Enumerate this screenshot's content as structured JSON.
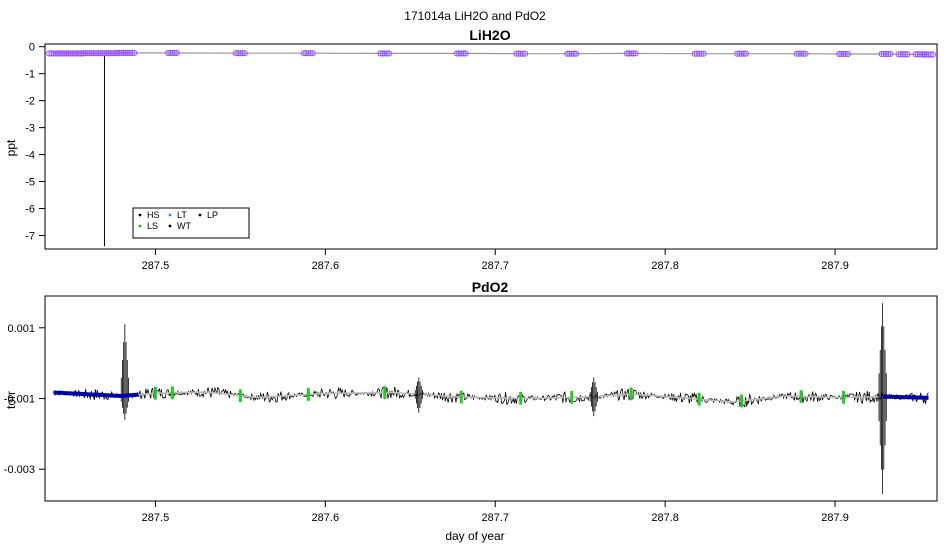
{
  "page_title": "171014a   LiH2O and PdO2",
  "chart_data": [
    {
      "type": "scatter",
      "title": "LiH2O",
      "xlabel": "",
      "ylabel": "ppt",
      "xlim": [
        287.435,
        287.96
      ],
      "ylim": [
        -7.5,
        0.1
      ],
      "x_ticks": [
        287.5,
        287.6,
        287.7,
        287.8,
        287.9
      ],
      "x_tick_labels": [
        "287.5",
        "287.6",
        "287.7",
        "287.8",
        "287.9"
      ],
      "y_ticks": [
        0,
        -1,
        -2,
        -3,
        -4,
        -5,
        -6,
        -7
      ],
      "y_tick_labels": [
        "0",
        "-1",
        "-2",
        "-3",
        "-4",
        "-5",
        "-6",
        "-7"
      ],
      "legend": {
        "placement": "bottom-left",
        "entries": [
          {
            "label": "HS",
            "color": "#000000"
          },
          {
            "label": "LT",
            "color": "#00a0ff"
          },
          {
            "label": "LP",
            "color": "#000000"
          },
          {
            "label": "LS",
            "color": "#00c000"
          },
          {
            "label": "WT",
            "color": "#000000"
          }
        ]
      },
      "line_color": "#999999",
      "marker_color": "#9955ff",
      "spike": {
        "x": 287.47,
        "y_min": -7.4,
        "y_max": -0.25
      },
      "series": [
        {
          "values": [
            [
              287.44,
              -0.25
            ],
            [
              287.445,
              -0.25
            ],
            [
              287.45,
              -0.25
            ],
            [
              287.455,
              -0.25
            ],
            [
              287.46,
              -0.24
            ],
            [
              287.465,
              -0.24
            ],
            [
              287.47,
              -0.24
            ],
            [
              287.475,
              -0.24
            ],
            [
              287.48,
              -0.23
            ],
            [
              287.485,
              -0.23
            ],
            [
              287.51,
              -0.23
            ],
            [
              287.55,
              -0.24
            ],
            [
              287.59,
              -0.24
            ],
            [
              287.635,
              -0.25
            ],
            [
              287.68,
              -0.25
            ],
            [
              287.715,
              -0.26
            ],
            [
              287.745,
              -0.26
            ],
            [
              287.78,
              -0.25
            ],
            [
              287.82,
              -0.26
            ],
            [
              287.845,
              -0.26
            ],
            [
              287.88,
              -0.26
            ],
            [
              287.905,
              -0.27
            ],
            [
              287.93,
              -0.27
            ],
            [
              287.94,
              -0.28
            ],
            [
              287.95,
              -0.28
            ],
            [
              287.955,
              -0.29
            ]
          ]
        }
      ]
    },
    {
      "type": "line",
      "title": "PdO2",
      "xlabel": "day of year",
      "ylabel": "torr",
      "xlim": [
        287.435,
        287.96
      ],
      "ylim": [
        -0.0039,
        0.0019
      ],
      "x_ticks": [
        287.5,
        287.6,
        287.7,
        287.8,
        287.9
      ],
      "x_tick_labels": [
        "287.5",
        "287.6",
        "287.7",
        "287.8",
        "287.9"
      ],
      "y_ticks": [
        0.001,
        -0.001,
        -0.003
      ],
      "y_tick_labels": [
        "0.001",
        "-0.001",
        "-0.003"
      ],
      "series_colors": {
        "raw": "#000000",
        "smooth": "#bbbbbb",
        "calibration": "#22cc22",
        "ambient": "#0000aa"
      },
      "baseline": [
        [
          287.44,
          -0.00083
        ],
        [
          287.46,
          -0.00088
        ],
        [
          287.48,
          -0.00093
        ],
        [
          287.5,
          -0.00085
        ],
        [
          287.53,
          -0.00082
        ],
        [
          287.56,
          -0.00097
        ],
        [
          287.6,
          -0.00086
        ],
        [
          287.64,
          -0.00083
        ],
        [
          287.68,
          -0.00096
        ],
        [
          287.72,
          -0.001
        ],
        [
          287.76,
          -0.00095
        ],
        [
          287.78,
          -0.00087
        ],
        [
          287.81,
          -0.00098
        ],
        [
          287.84,
          -0.0011
        ],
        [
          287.87,
          -0.00093
        ],
        [
          287.9,
          -0.00097
        ],
        [
          287.93,
          -0.00095
        ],
        [
          287.955,
          -0.00098
        ]
      ],
      "spikes": [
        {
          "x": 287.482,
          "low": -0.0016,
          "high": 0.0011
        },
        {
          "x": 287.928,
          "low": -0.0037,
          "high": 0.0017
        },
        {
          "x": 287.655,
          "low": -0.0014,
          "high": -0.0004
        },
        {
          "x": 287.758,
          "low": -0.0015,
          "high": -0.0004
        }
      ],
      "calibration_x": [
        287.5,
        287.51,
        287.55,
        287.59,
        287.635,
        287.68,
        287.715,
        287.745,
        287.78,
        287.82,
        287.845,
        287.88,
        287.905
      ],
      "ambient_ranges": [
        [
          287.44,
          287.49
        ],
        [
          287.928,
          287.955
        ]
      ]
    }
  ]
}
